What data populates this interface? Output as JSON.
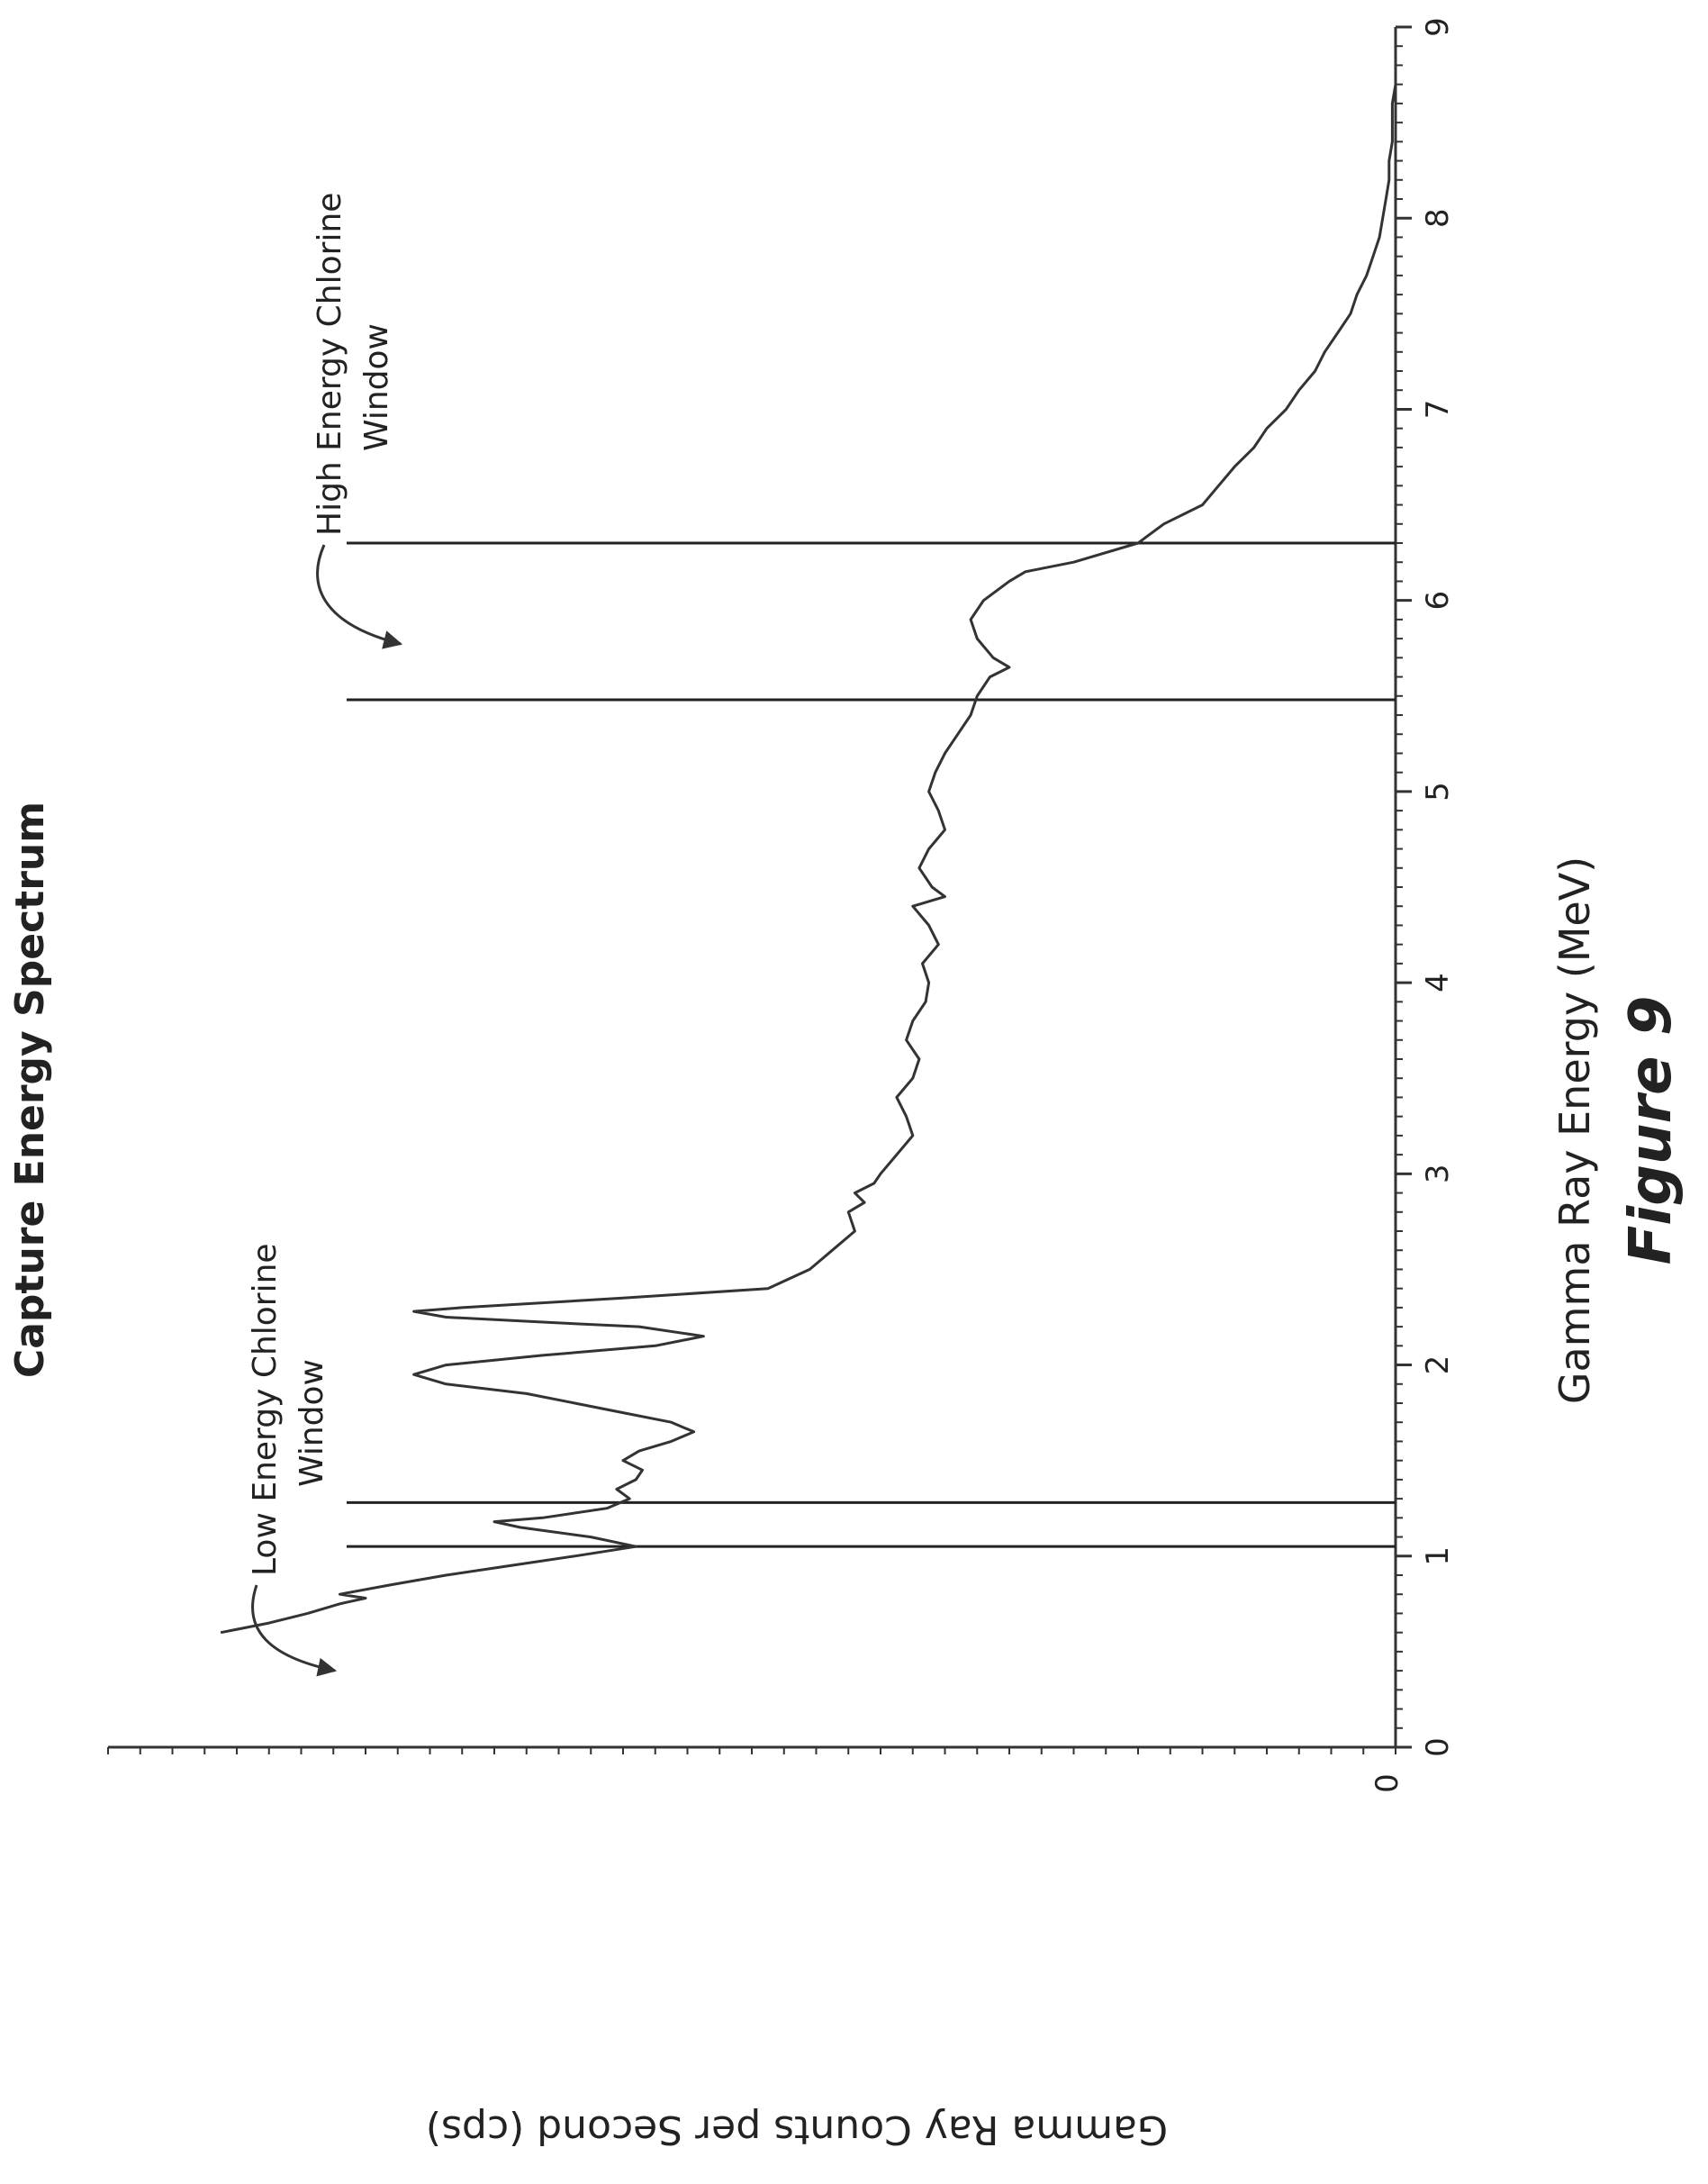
{
  "chart_data": {
    "type": "line",
    "title": "Capture Energy Spectrum",
    "xlabel": "Gamma Ray Energy (MeV)",
    "ylabel": "Gamma Ray Counts per Second (cps)",
    "caption": "Figure 9",
    "xlim": [
      0,
      9
    ],
    "ylim": [
      0,
      4
    ],
    "x_ticks": [
      "0",
      "1",
      "2",
      "3",
      "4",
      "5",
      "6",
      "7",
      "8",
      "9"
    ],
    "y_ticks": [
      "0"
    ],
    "grid": false,
    "windows": [
      {
        "name": "Low Energy Chlorine Window",
        "label_line1": "Low Energy Chlorine",
        "label_line2": "Window",
        "x_start": 1.05,
        "x_end": 1.28
      },
      {
        "name": "High Energy Chlorine Window",
        "label_line1": "High Energy Chlorine",
        "label_line2": "Window",
        "x_start": 5.48,
        "x_end": 6.3
      }
    ],
    "series": [
      {
        "x": [
          0.6,
          0.65,
          0.7,
          0.75,
          0.78,
          0.8,
          0.85,
          0.9,
          0.95,
          1.0,
          1.05,
          1.1,
          1.15,
          1.18,
          1.2,
          1.25,
          1.3,
          1.35,
          1.4,
          1.45,
          1.5,
          1.55,
          1.6,
          1.65,
          1.7,
          1.75,
          1.8,
          1.85,
          1.9,
          1.95,
          2.0,
          2.05,
          2.1,
          2.15,
          2.2,
          2.22,
          2.25,
          2.28,
          2.3,
          2.35,
          2.4,
          2.5,
          2.6,
          2.7,
          2.8,
          2.85,
          2.9,
          2.95,
          3.0,
          3.1,
          3.2,
          3.3,
          3.4,
          3.5,
          3.6,
          3.7,
          3.8,
          3.9,
          4.0,
          4.1,
          4.2,
          4.3,
          4.4,
          4.45,
          4.5,
          4.6,
          4.7,
          4.8,
          4.9,
          5.0,
          5.1,
          5.2,
          5.3,
          5.4,
          5.5,
          5.6,
          5.65,
          5.7,
          5.8,
          5.9,
          6.0,
          6.1,
          6.15,
          6.2,
          6.3,
          6.4,
          6.5,
          6.6,
          6.7,
          6.8,
          6.9,
          7.0,
          7.1,
          7.2,
          7.3,
          7.4,
          7.5,
          7.6,
          7.7,
          7.8,
          7.9,
          8.0,
          8.1,
          8.2,
          8.3,
          8.4,
          8.5,
          8.6,
          8.7,
          8.8
        ],
        "y": [
          3.65,
          3.5,
          3.38,
          3.28,
          3.2,
          3.28,
          3.12,
          2.95,
          2.75,
          2.55,
          2.36,
          2.5,
          2.72,
          2.8,
          2.65,
          2.45,
          2.38,
          2.42,
          2.36,
          2.34,
          2.4,
          2.35,
          2.25,
          2.18,
          2.25,
          2.4,
          2.55,
          2.7,
          2.95,
          3.05,
          2.95,
          2.65,
          2.3,
          2.15,
          2.35,
          2.6,
          2.95,
          3.05,
          2.9,
          2.4,
          1.95,
          1.82,
          1.75,
          1.68,
          1.7,
          1.65,
          1.68,
          1.62,
          1.6,
          1.55,
          1.5,
          1.52,
          1.55,
          1.5,
          1.48,
          1.52,
          1.5,
          1.46,
          1.45,
          1.47,
          1.42,
          1.45,
          1.5,
          1.4,
          1.44,
          1.48,
          1.45,
          1.4,
          1.42,
          1.45,
          1.43,
          1.4,
          1.36,
          1.32,
          1.3,
          1.26,
          1.2,
          1.25,
          1.3,
          1.32,
          1.28,
          1.2,
          1.15,
          1.0,
          0.8,
          0.72,
          0.6,
          0.55,
          0.5,
          0.44,
          0.4,
          0.34,
          0.3,
          0.25,
          0.22,
          0.18,
          0.14,
          0.12,
          0.09,
          0.07,
          0.05,
          0.04,
          0.03,
          0.02,
          0.02,
          0.01,
          0.01,
          0.01,
          0.0,
          0.0
        ]
      }
    ]
  }
}
